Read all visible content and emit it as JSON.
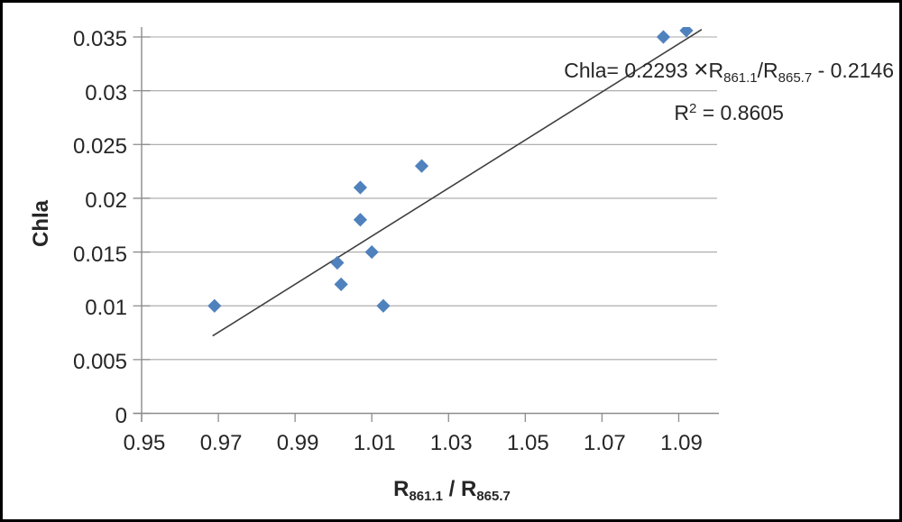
{
  "chart_data": {
    "type": "scatter",
    "title": "",
    "ylabel": "Chla",
    "xlabel_parts": [
      {
        "t": "R"
      },
      {
        "t": "861.1",
        "sub": true
      },
      {
        "t": " / R"
      },
      {
        "t": "865.7",
        "sub": true
      }
    ],
    "x_ticks": {
      "values": [
        0.95,
        0.97,
        0.99,
        1.01,
        1.03,
        1.05,
        1.07,
        1.09
      ],
      "labels": [
        "0.95",
        "0.97",
        "0.99",
        "1.01",
        "1.03",
        "1.05",
        "1.07",
        "1.09"
      ]
    },
    "y_ticks": {
      "values": [
        0,
        0.005,
        0.01,
        0.015,
        0.02,
        0.025,
        0.03,
        0.035
      ],
      "labels": [
        "0",
        "0.005",
        "0.01",
        "0.015",
        "0.02",
        "0.025",
        "0.03",
        "0.035"
      ]
    },
    "xlim": [
      0.95,
      1.1
    ],
    "ylim": [
      0,
      0.035
    ],
    "grid": "horizontal-only",
    "legend": "none",
    "points": [
      {
        "x": 0.969,
        "y": 0.01
      },
      {
        "x": 1.001,
        "y": 0.014
      },
      {
        "x": 1.002,
        "y": 0.012
      },
      {
        "x": 1.007,
        "y": 0.021
      },
      {
        "x": 1.007,
        "y": 0.018
      },
      {
        "x": 1.01,
        "y": 0.015
      },
      {
        "x": 1.013,
        "y": 0.01
      },
      {
        "x": 1.023,
        "y": 0.023
      },
      {
        "x": 1.086,
        "y": 0.035
      },
      {
        "x": 1.092,
        "y": 0.0356
      }
    ],
    "trendline": {
      "x1": 0.9685,
      "y1": 0.0072,
      "x2": 1.096,
      "y2": 0.0357
    },
    "equation_line1_parts": [
      {
        "t": "Chla= 0.2293 "
      },
      {
        "t": "×",
        "times": true
      },
      {
        "t": "R"
      },
      {
        "t": "861.1",
        "sub": true
      },
      {
        "t": "/R"
      },
      {
        "t": "865.7",
        "sub": true
      },
      {
        "t": " - 0.2146"
      }
    ],
    "equation_line2_parts": [
      {
        "t": "R"
      },
      {
        "t": "2",
        "sup": true
      },
      {
        "t": " = 0.8605"
      }
    ],
    "colors": {
      "marker": "#4F81BD",
      "trendline": "#3F3F3F",
      "gridline": "#A6A6A6",
      "axis": "#8C8C8C",
      "text": "#262626"
    }
  }
}
